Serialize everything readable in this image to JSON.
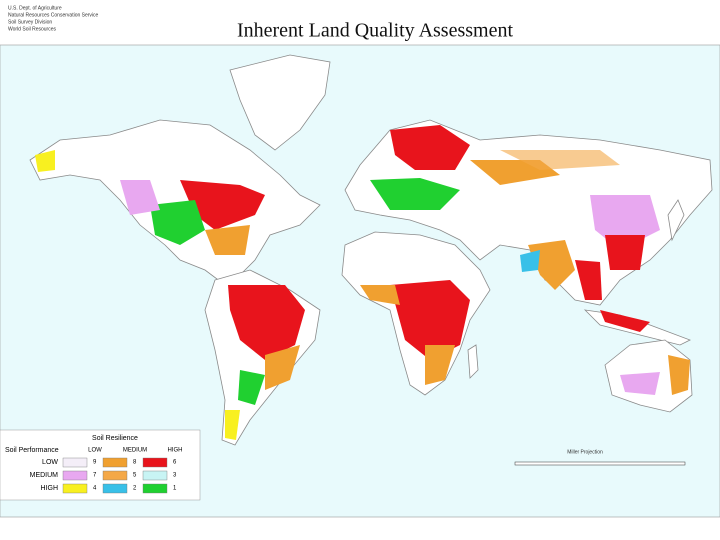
{
  "header": {
    "agency": [
      "U.S. Dept. of Agriculture",
      "Natural Resources Conservation Service",
      "Soil Survey Division",
      "World Soil Resources"
    ],
    "title": "Inherent Land Quality Assessment"
  },
  "legend": {
    "title": "Soil Resilience",
    "row_title": "Soil Performance",
    "columns": [
      "LOW",
      "MEDIUM",
      "HIGH"
    ],
    "rows": [
      {
        "label": "LOW",
        "classes": [
          {
            "number": 9,
            "color": "#f4eef8"
          },
          {
            "number": 8,
            "color": "#f0a030"
          },
          {
            "number": 6,
            "color": "#e8141c"
          }
        ]
      },
      {
        "label": "MEDIUM",
        "classes": [
          {
            "number": 7,
            "color": "#e8a8f0"
          },
          {
            "number": 5,
            "color": "#f4a848"
          },
          {
            "number": 3,
            "color": "#c8f4f4"
          }
        ]
      },
      {
        "label": "HIGH",
        "classes": [
          {
            "number": 4,
            "color": "#f8f020"
          },
          {
            "number": 2,
            "color": "#38c0e8"
          },
          {
            "number": 1,
            "color": "#20d030"
          }
        ]
      }
    ]
  },
  "scale": {
    "projection": "Miller Projection"
  }
}
